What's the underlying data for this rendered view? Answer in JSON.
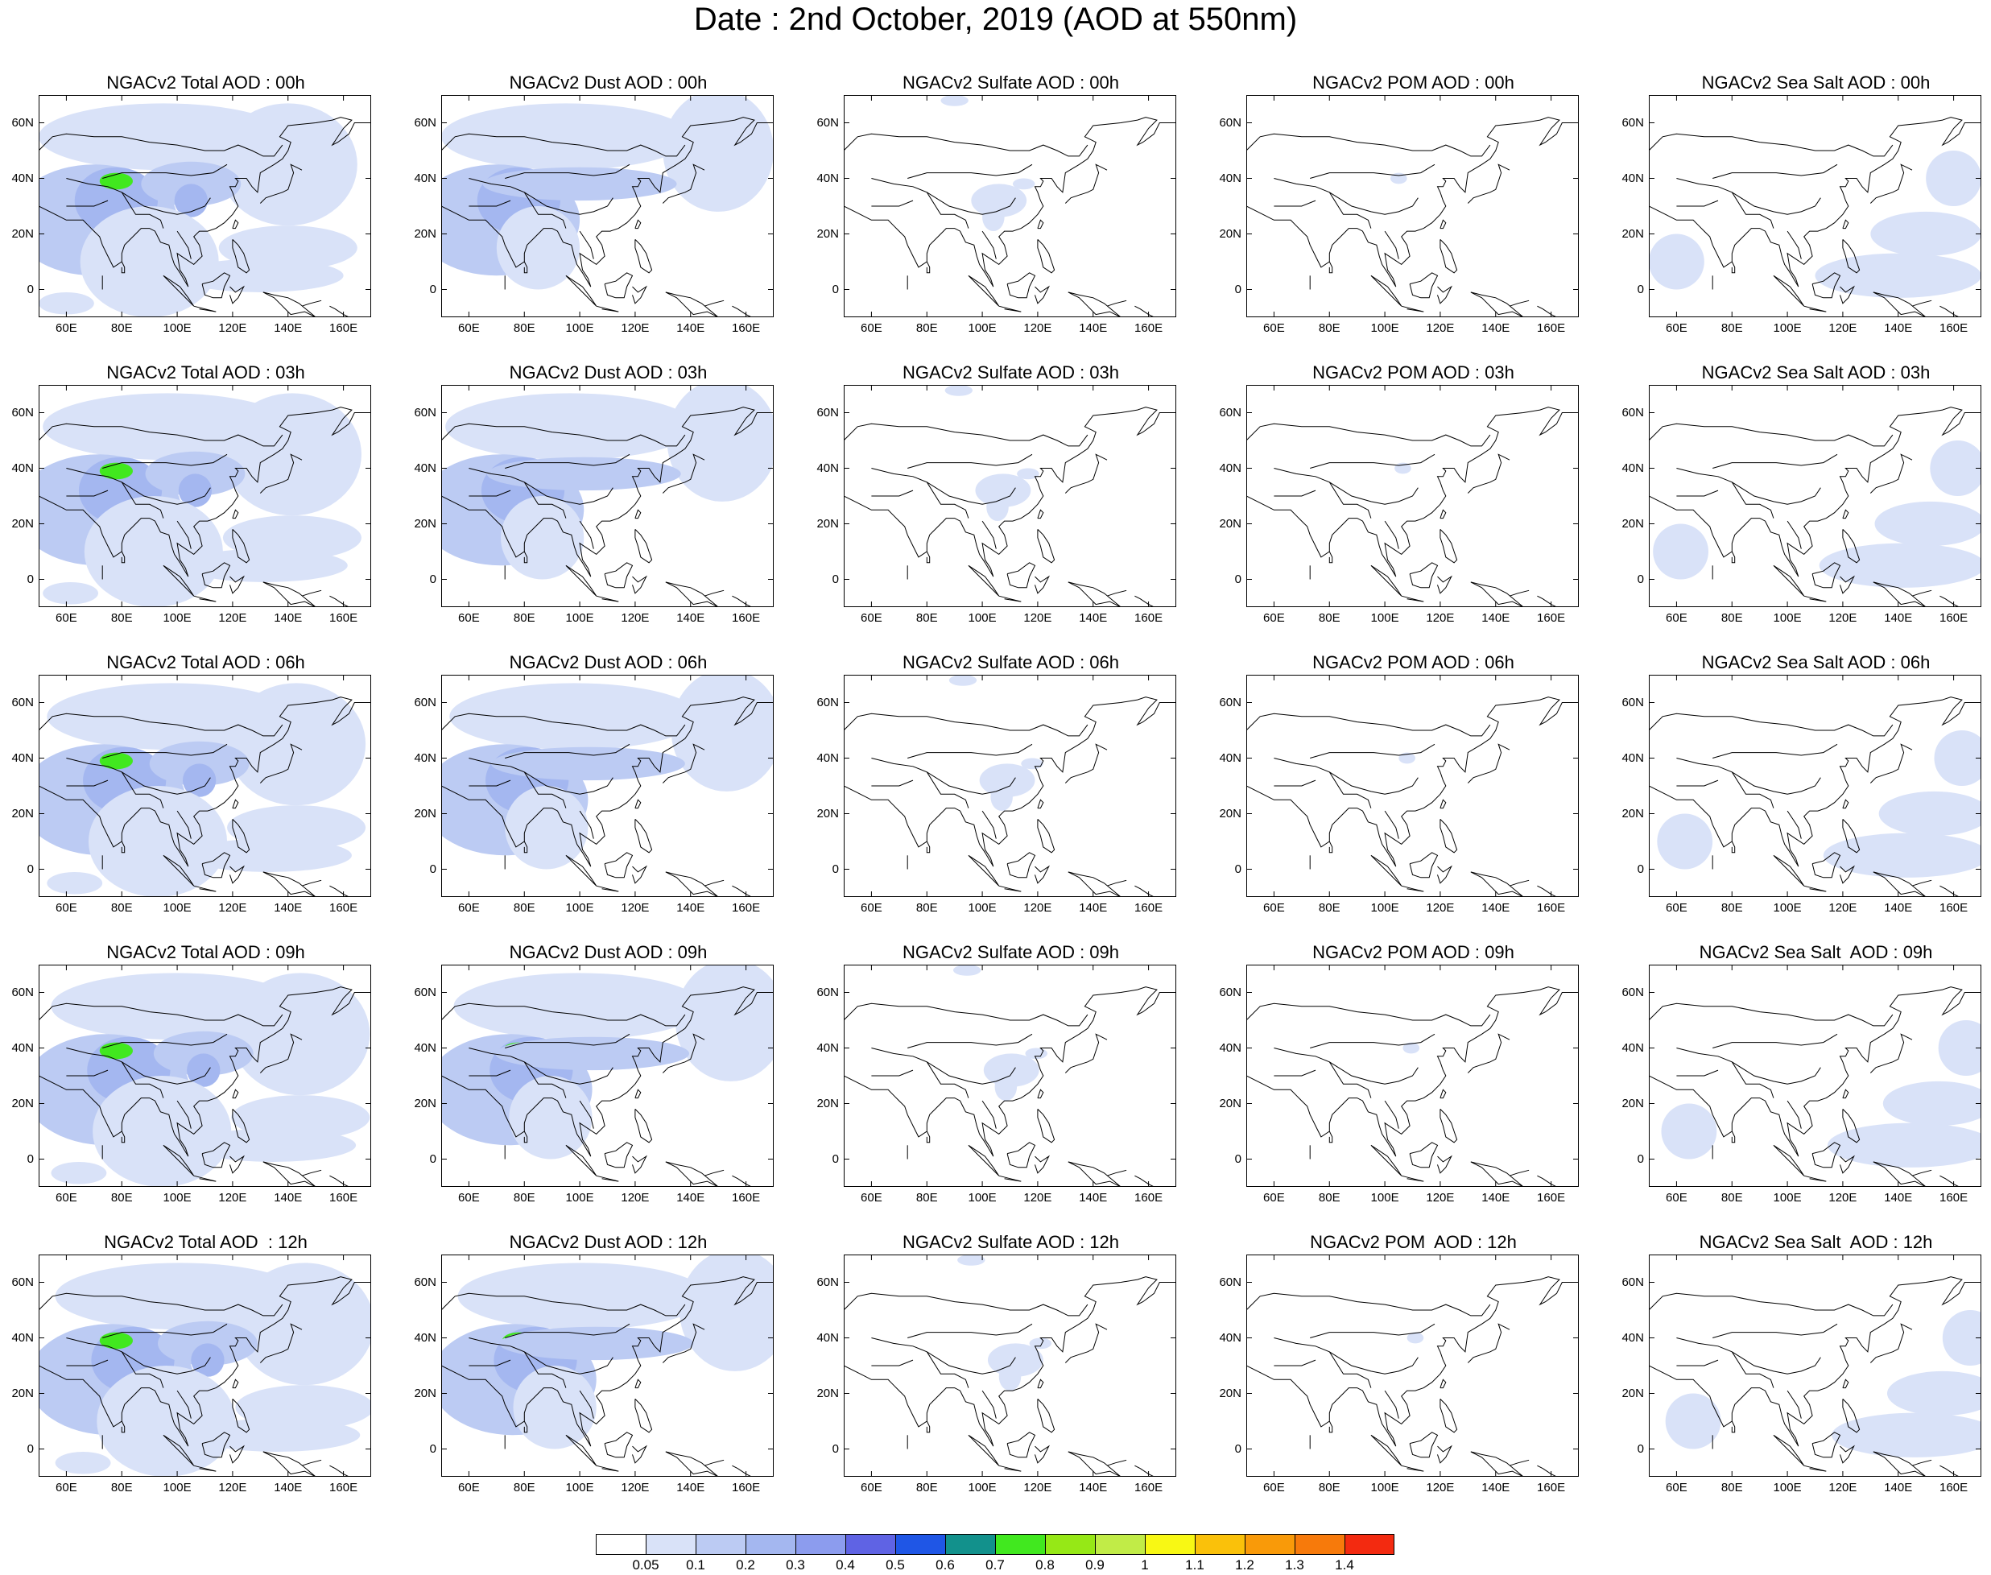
{
  "title": "Date : 2nd October, 2019 (AOD at 550nm)",
  "panels": [
    [
      "NGACv2 Total AOD : 00h",
      "NGACv2 Dust AOD : 00h",
      "NGACv2 Sulfate AOD : 00h",
      "NGACv2 POM AOD : 00h",
      "NGACv2 Sea Salt AOD : 00h"
    ],
    [
      "NGACv2 Total AOD : 03h",
      "NGACv2 Dust AOD : 03h",
      "NGACv2 Sulfate AOD : 03h",
      "NGACv2 POM AOD : 03h",
      "NGACv2 Sea Salt AOD : 03h"
    ],
    [
      "NGACv2 Total AOD : 06h",
      "NGACv2 Dust AOD : 06h",
      "NGACv2 Sulfate AOD : 06h",
      "NGACv2 POM AOD : 06h",
      "NGACv2 Sea Salt AOD : 06h"
    ],
    [
      "NGACv2 Total AOD : 09h",
      "NGACv2 Dust AOD : 09h",
      "NGACv2 Sulfate AOD : 09h",
      "NGACv2 POM AOD : 09h",
      "NGACv2 Sea Salt  AOD : 09h"
    ],
    [
      "NGACv2 Total AOD  : 12h",
      "NGACv2 Dust AOD : 12h",
      "NGACv2 Sulfate AOD : 12h",
      "NGACv2 POM  AOD : 12h",
      "NGACv2 Sea Salt  AOD : 12h"
    ]
  ],
  "lat_labels": [
    "60N",
    "40N",
    "20N",
    "0"
  ],
  "lon_labels": [
    "60E",
    "80E",
    "100E",
    "120E",
    "140E",
    "160E"
  ],
  "colorbar": {
    "labels": [
      "0.05",
      "0.1",
      "0.2",
      "0.3",
      "0.4",
      "0.5",
      "0.6",
      "0.7",
      "0.8",
      "0.9",
      "1",
      "1.1",
      "1.2",
      "1.3",
      "1.4"
    ],
    "colors": [
      "#ffffff",
      "#d9e2f8",
      "#bccbf3",
      "#a4b7f0",
      "#8c9cee",
      "#5f63e4",
      "#1f56e6",
      "#12918c",
      "#41e81f",
      "#96e816",
      "#c1ec47",
      "#f8f814",
      "#fac10a",
      "#f99a09",
      "#f77a0b",
      "#f32a10"
    ]
  },
  "map_colors": {
    "coast": "#000000",
    "frame": "#000000"
  }
}
